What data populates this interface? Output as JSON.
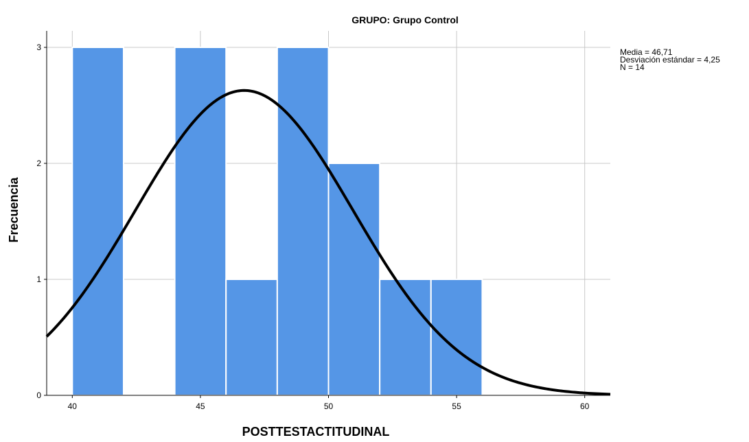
{
  "chart_data": {
    "type": "bar",
    "title": "GRUPO: Grupo Control",
    "xlabel": "POSTTESTACTITUDINAL",
    "ylabel": "Frecuencia",
    "xlim": [
      39,
      61
    ],
    "ylim": [
      0,
      3
    ],
    "x_ticks": [
      "40",
      "45",
      "50",
      "55",
      "60"
    ],
    "y_ticks": [
      "0",
      "1",
      "2",
      "3"
    ],
    "bin_width": 2,
    "bins": [
      {
        "start": 40,
        "end": 42,
        "count": 3
      },
      {
        "start": 42,
        "end": 44,
        "count": 0
      },
      {
        "start": 44,
        "end": 46,
        "count": 3
      },
      {
        "start": 46,
        "end": 48,
        "count": 1
      },
      {
        "start": 48,
        "end": 50,
        "count": 3
      },
      {
        "start": 50,
        "end": 52,
        "count": 2
      },
      {
        "start": 52,
        "end": 54,
        "count": 1
      },
      {
        "start": 54,
        "end": 56,
        "count": 1
      }
    ],
    "normal_curve": {
      "mean": 46.71,
      "sd": 4.25,
      "n": 14
    },
    "grid": true,
    "colors": {
      "bar": "#5596e6",
      "curve": "#000000",
      "grid": "#c8c8c8"
    }
  },
  "stats_box": {
    "mean_label": "Media = 46,71",
    "sd_label": "Desviación estándar = 4,25",
    "n_label": "N = 14"
  }
}
